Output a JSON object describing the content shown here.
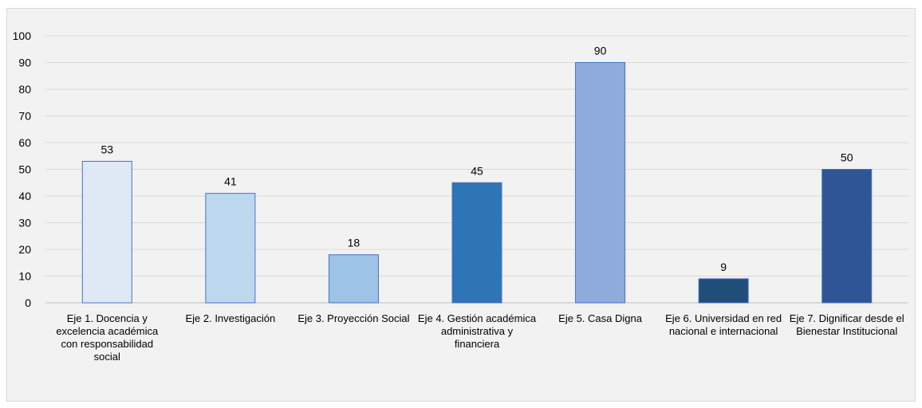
{
  "chart_data": {
    "type": "bar",
    "title": "",
    "xlabel": "",
    "ylabel": "",
    "ylim": [
      0,
      100
    ],
    "yticks": [
      0,
      10,
      20,
      30,
      40,
      50,
      60,
      70,
      80,
      90,
      100
    ],
    "grid": true,
    "categories": [
      "Eje 1. Docencia y excelencia académica con responsabilidad social",
      "Eje 2. Investigación",
      "Eje 3. Proyección Social",
      "Eje 4. Gestión académica administrativa y financiera",
      "Eje 5. Casa Digna",
      "Eje 6. Universidad en red nacional e internacional",
      "Eje 7. Dignificar desde el Bienestar Institucional"
    ],
    "values": [
      53,
      41,
      18,
      45,
      90,
      9,
      50
    ],
    "colors": [
      "#dfe9f6",
      "#bdd7ee",
      "#9dc3e6",
      "#2e75b6",
      "#8faadc",
      "#1f4e79",
      "#2f5597"
    ],
    "border_color": "#4472c4"
  }
}
